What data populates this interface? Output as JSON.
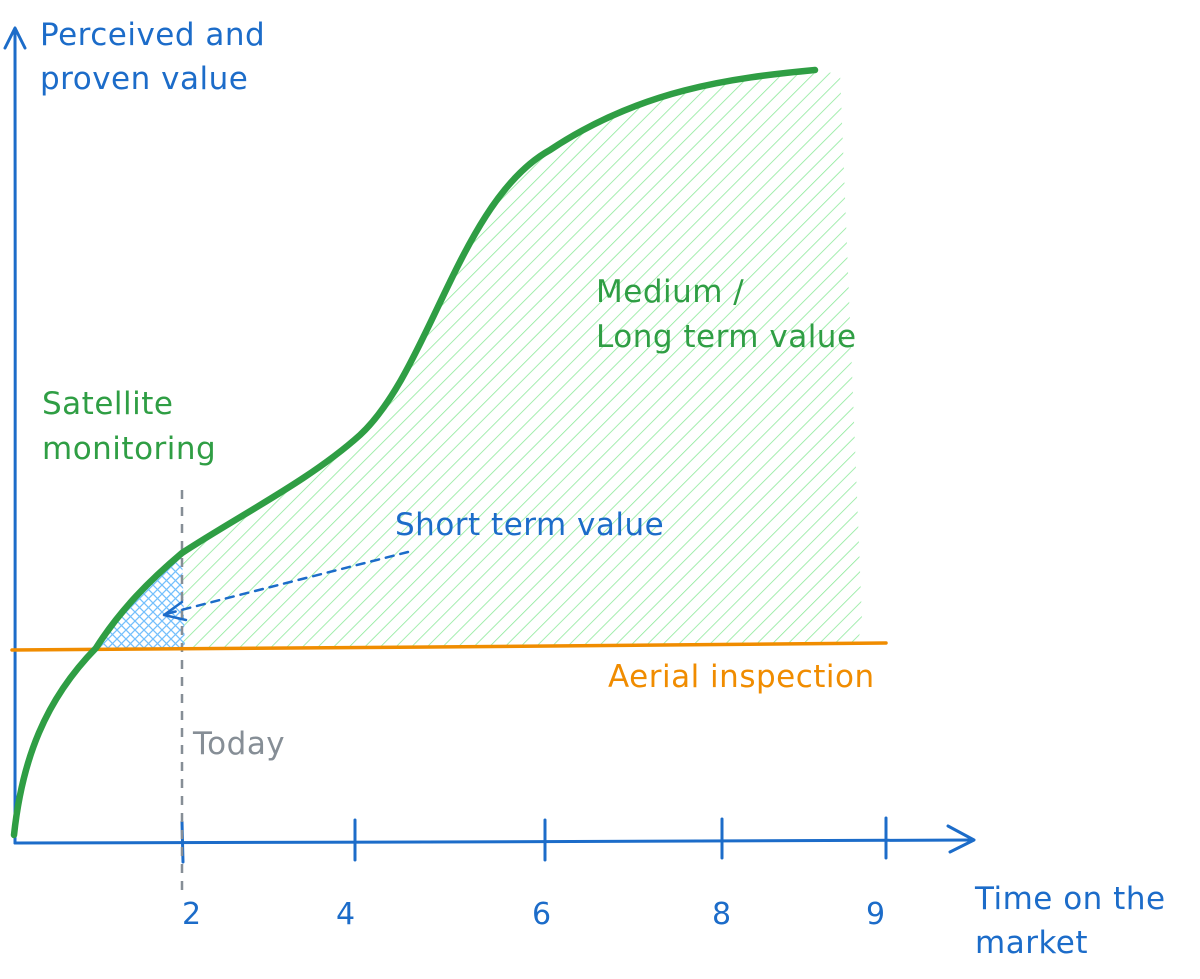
{
  "y_axis_label": [
    "Perceived and",
    "proven value"
  ],
  "x_axis_label": [
    "Time on the",
    "market"
  ],
  "x_ticks": [
    "2",
    "4",
    "6",
    "8",
    "9"
  ],
  "labels": {
    "satellite": [
      "Satellite",
      "monitoring"
    ],
    "medium_long": [
      "Medium /",
      "Long term value"
    ],
    "short_term": "Short term value",
    "aerial": "Aerial inspection",
    "today": "Today"
  },
  "colors": {
    "axis": "#1c6cc9",
    "satellite_curve": "#2f9e44",
    "hatch_green": "#8ce99a",
    "hatch_blue": "#74c0fc",
    "aerial_line": "#f08c00",
    "today_line": "#868e96"
  }
}
